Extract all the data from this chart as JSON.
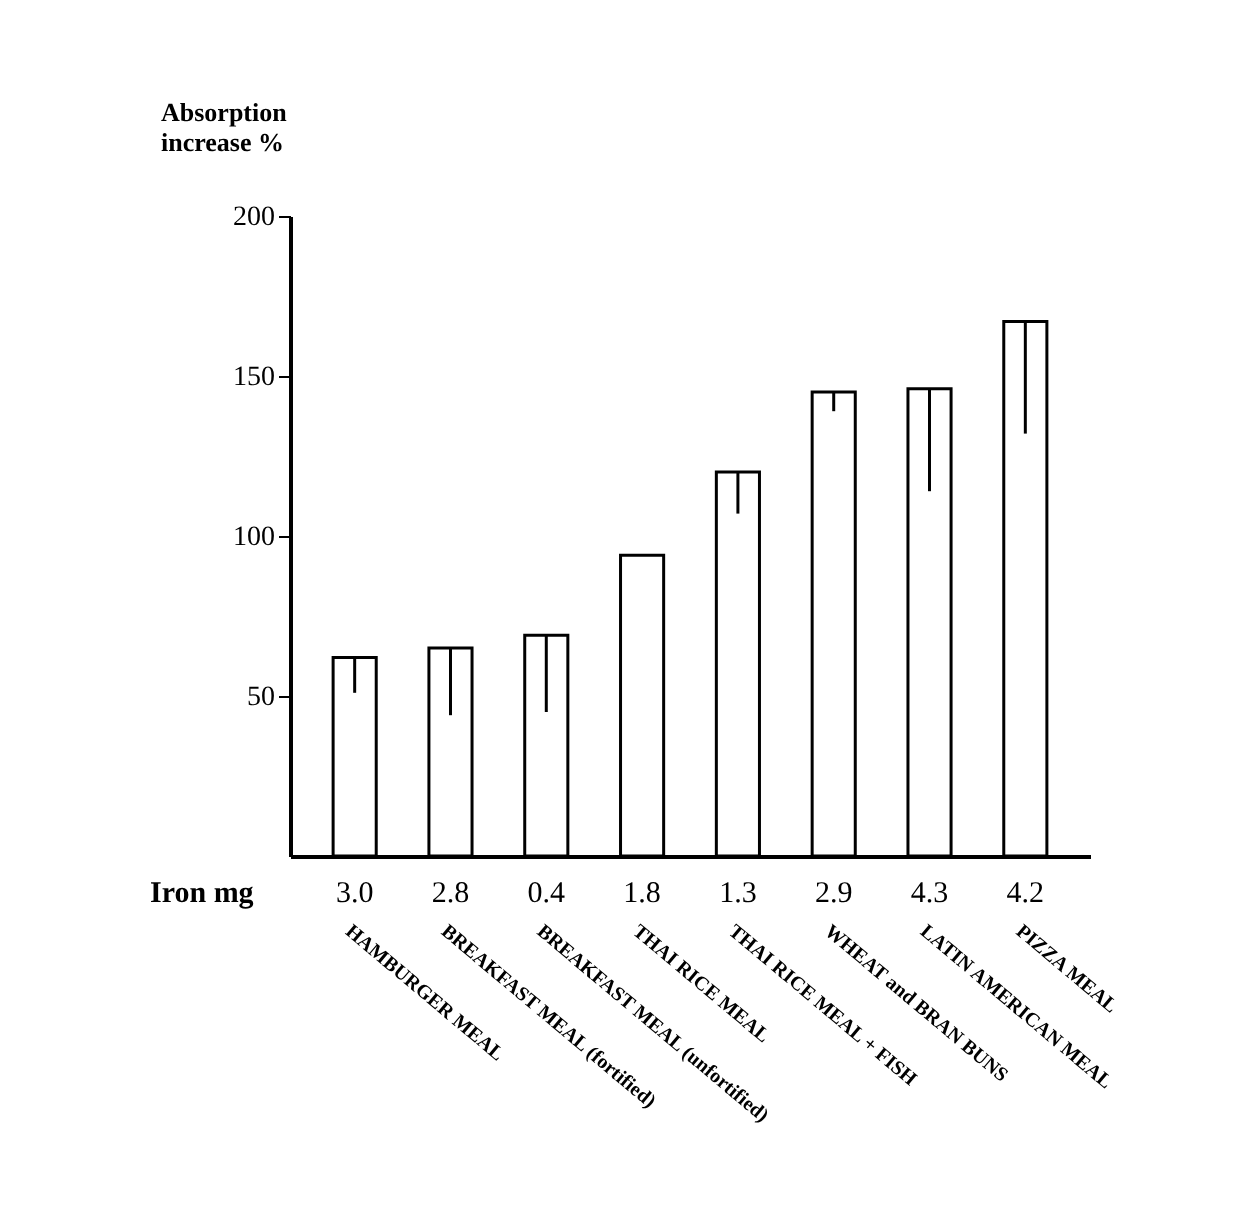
{
  "chart_data": {
    "type": "bar",
    "ylabel": "Absorption increase %",
    "categories": [
      "HAMBURGER MEAL",
      "BREAKFAST MEAL (fortified)",
      "BREAKFAST MEAL (unfortified)",
      "THAI RICE MEAL",
      "THAI RICE MEAL + FISH",
      "WHEAT and BRAN BUNS",
      "LATIN AMERICAN MEAL",
      "PIZZA MEAL"
    ],
    "values": [
      62,
      65,
      69,
      94,
      120,
      145,
      146,
      167
    ],
    "errors": [
      [
        51,
        62
      ],
      [
        44,
        65
      ],
      [
        45,
        69
      ],
      null,
      [
        107,
        120
      ],
      [
        139,
        145
      ],
      [
        114,
        146
      ],
      [
        132,
        167
      ]
    ],
    "color": "#ffffff",
    "ylim": [
      0,
      200
    ],
    "yticks": [
      50,
      100,
      150,
      200
    ],
    "grid": false,
    "annotations": [
      "Iron mg",
      "3.0",
      "2.8",
      "0.4",
      "1.8",
      "1.3",
      "2.9",
      "4.3",
      "4.2"
    ]
  }
}
